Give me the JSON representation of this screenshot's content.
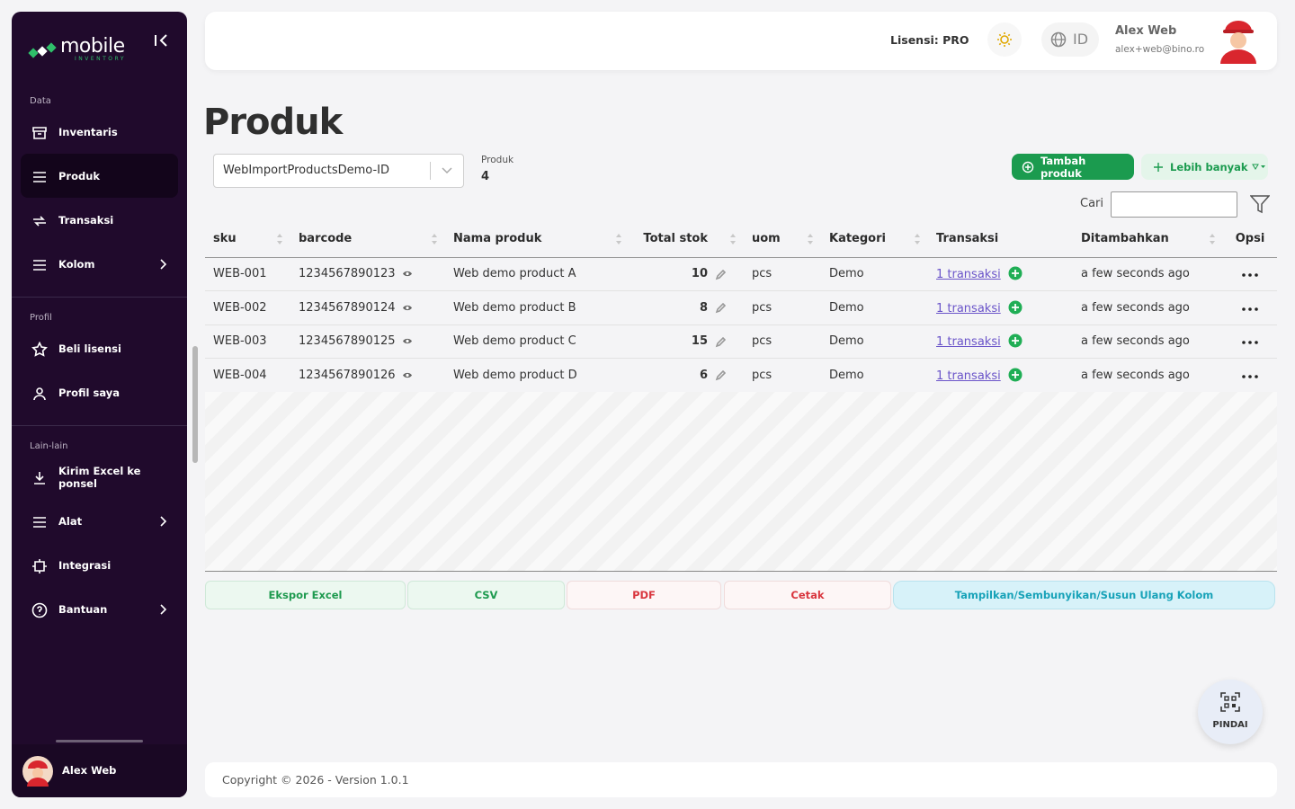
{
  "sidebar": {
    "logo": {
      "name": "mobile",
      "tagline": "INVENTORY"
    },
    "sections": [
      {
        "title": "Data",
        "items": [
          {
            "label": "Inventaris"
          },
          {
            "label": "Produk",
            "active": true
          },
          {
            "label": "Transaksi"
          },
          {
            "label": "Kolom",
            "submenu": true
          }
        ]
      },
      {
        "title": "Profil",
        "items": [
          {
            "label": "Beli lisensi"
          },
          {
            "label": "Profil saya"
          }
        ]
      },
      {
        "title": "Lain-lain",
        "items": [
          {
            "label": "Kirim Excel ke ponsel"
          },
          {
            "label": "Alat",
            "submenu": true
          },
          {
            "label": "Integrasi"
          },
          {
            "label": "Bantuan",
            "submenu": true
          }
        ]
      }
    ],
    "user": "Alex Web"
  },
  "header": {
    "license": "Lisensi: PRO",
    "language": "ID",
    "user_name": "Alex Web",
    "user_email": "alex+web@bino.ro"
  },
  "page": {
    "title": "Produk",
    "selector": "WebImportProductsDemo-ID",
    "stat_label": "Produk",
    "stat_value": 4,
    "add_button": "Tambah produk",
    "more_button": "Lebih banyak",
    "search_label": "Cari"
  },
  "table": {
    "columns": [
      {
        "label": "sku",
        "sortable": true
      },
      {
        "label": "barcode",
        "sortable": true
      },
      {
        "label": "Nama produk",
        "sortable": true
      },
      {
        "label": "Total stok",
        "sortable": true
      },
      {
        "label": "uom",
        "sortable": true
      },
      {
        "label": "Kategori",
        "sortable": true
      },
      {
        "label": "Transaksi",
        "sortable": false
      },
      {
        "label": "Ditambahkan",
        "sortable": true
      },
      {
        "label": "Opsi",
        "sortable": false
      }
    ],
    "rows": [
      [
        "WEB-001",
        "1234567890123",
        "Web demo product A",
        10,
        "pcs",
        "Demo",
        "1 transaksi",
        "a few seconds ago"
      ],
      [
        "WEB-002",
        "1234567890124",
        "Web demo product B",
        8,
        "pcs",
        "Demo",
        "1 transaksi",
        "a few seconds ago"
      ],
      [
        "WEB-003",
        "1234567890125",
        "Web demo product C",
        15,
        "pcs",
        "Demo",
        "1 transaksi",
        "a few seconds ago"
      ],
      [
        "WEB-004",
        "1234567890126",
        "Web demo product D",
        6,
        "pcs",
        "Demo",
        "1 transaksi",
        "a few seconds ago"
      ]
    ]
  },
  "export_buttons": [
    "Ekspor Excel",
    "CSV",
    "PDF",
    "Cetak",
    "Tampilkan/Sembunyikan/Susun Ulang Kolom"
  ],
  "scan_button": "PINDAI",
  "footer": "Copyright © 2026 - Version 1.0.1"
}
